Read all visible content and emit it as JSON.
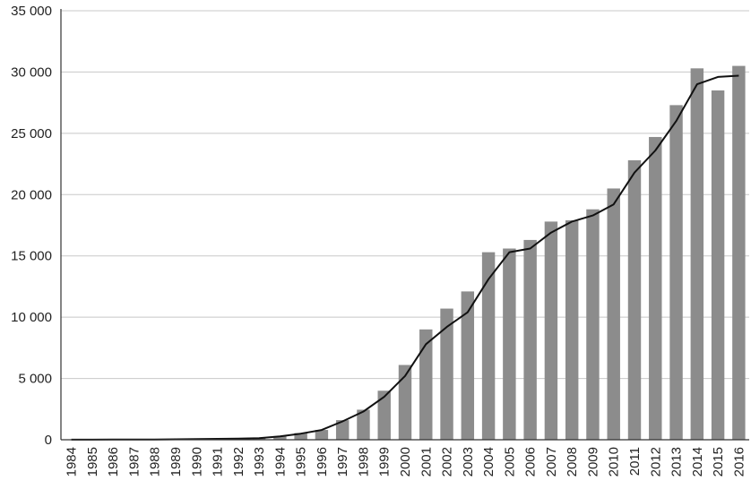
{
  "chart_data": {
    "type": "bar",
    "title": "",
    "xlabel": "",
    "ylabel": "",
    "ylim": [
      0,
      35000
    ],
    "yticks": [
      0,
      5000,
      10000,
      15000,
      20000,
      25000,
      30000,
      35000
    ],
    "ytick_labels": [
      "0",
      "5 000",
      "10 000",
      "15 000",
      "20 000",
      "25 000",
      "30 000",
      "35 000"
    ],
    "grid": true,
    "categories": [
      "1984",
      "1985",
      "1986",
      "1987",
      "1988",
      "1989",
      "1990",
      "1991",
      "1992",
      "1993",
      "1994",
      "1995",
      "1996",
      "1997",
      "1998",
      "1999",
      "2000",
      "2001",
      "2002",
      "2003",
      "2004",
      "2005",
      "2006",
      "2007",
      "2008",
      "2009",
      "2010",
      "2011",
      "2012",
      "2013",
      "2014",
      "2015",
      "2016"
    ],
    "series": [
      {
        "type": "bar",
        "color": "#8c8c8c",
        "values": [
          10,
          10,
          15,
          20,
          30,
          40,
          60,
          80,
          100,
          150,
          300,
          550,
          800,
          1600,
          2450,
          4000,
          6100,
          9000,
          10700,
          12100,
          15300,
          15600,
          16300,
          17800,
          17900,
          18800,
          20500,
          22800,
          24700,
          27300,
          30300,
          28500,
          30500
        ]
      },
      {
        "type": "line",
        "color": "#111111",
        "values": [
          10,
          10,
          15,
          20,
          25,
          35,
          50,
          70,
          90,
          130,
          280,
          500,
          800,
          1500,
          2300,
          3500,
          5200,
          7800,
          9200,
          10400,
          13100,
          15300,
          15600,
          16900,
          17800,
          18300,
          19200,
          21800,
          23600,
          26000,
          29000,
          29600,
          29700
        ]
      }
    ]
  }
}
